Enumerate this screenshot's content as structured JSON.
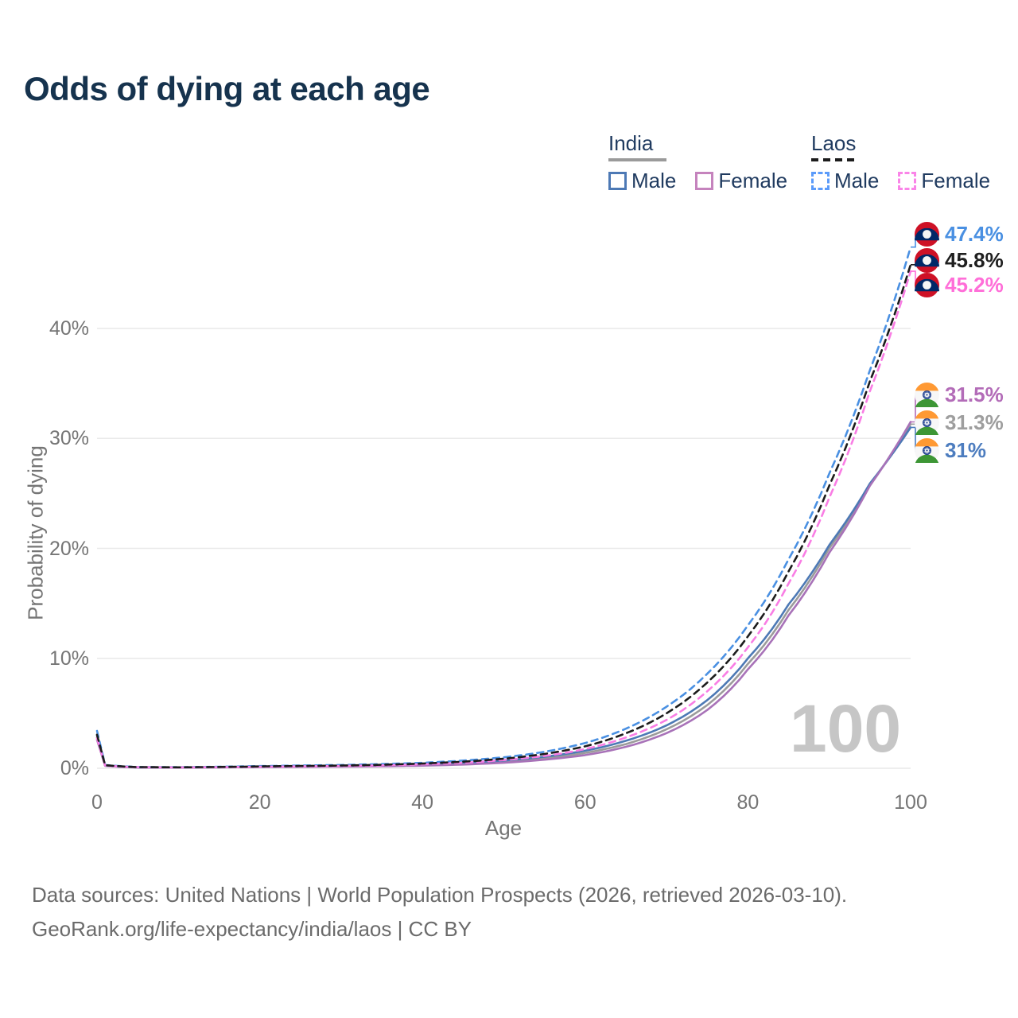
{
  "title": "Odds of dying at each age",
  "legend": {
    "groups": [
      {
        "name": "India",
        "underline_style": "solid",
        "underline_color": "#9a9a9a",
        "items": [
          {
            "label": "Male",
            "swatch_color": "#4d79b5",
            "swatch_style": "solid"
          },
          {
            "label": "Female",
            "swatch_color": "#c583bd",
            "swatch_style": "solid"
          }
        ]
      },
      {
        "name": "Laos",
        "underline_style": "dashed",
        "underline_color": "#1c1c1c",
        "items": [
          {
            "label": "Male",
            "swatch_color": "#5b9bfa",
            "swatch_style": "dashed"
          },
          {
            "label": "Female",
            "swatch_color": "#fa85e8",
            "swatch_style": "dashed"
          }
        ]
      }
    ]
  },
  "axes": {
    "x_title": "Age",
    "y_title": "Probability of dying",
    "x_ticks": [
      "0",
      "20",
      "40",
      "60",
      "80",
      "100"
    ],
    "y_ticks": [
      "0%",
      "10%",
      "20%",
      "30%",
      "40%"
    ]
  },
  "watermark": "100",
  "footer": {
    "line1": "Data sources: United Nations | World Population Prospects (2026, retrieved 2026-03-10).",
    "line2": "GeoRank.org/life-expectancy/india/laos | CC BY"
  },
  "chart_data": {
    "type": "line",
    "title": "Odds of dying at each age",
    "xlabel": "Age",
    "ylabel": "Probability of dying",
    "x_range": [
      0,
      100
    ],
    "y_range_pct": [
      0,
      40
    ],
    "grid": "horizontal-only",
    "x": [
      0,
      1,
      5,
      10,
      15,
      20,
      25,
      30,
      35,
      40,
      45,
      50,
      55,
      60,
      65,
      70,
      75,
      80,
      85,
      90,
      95,
      100
    ],
    "series": [
      {
        "name": "India Both sexes",
        "country": "India",
        "sex": "Both",
        "style": "solid",
        "color": "#9b9b9b",
        "values_pct": [
          2.8,
          0.24,
          0.075,
          0.065,
          0.09,
          0.125,
          0.15,
          0.175,
          0.215,
          0.285,
          0.4,
          0.6,
          0.9,
          1.4,
          2.2,
          3.55,
          5.75,
          9.5,
          14.4,
          20.0,
          25.8,
          31.3
        ]
      },
      {
        "name": "India Male",
        "country": "India",
        "sex": "Male",
        "style": "solid",
        "color": "#4d79b5",
        "values_pct": [
          3.0,
          0.25,
          0.08,
          0.07,
          0.1,
          0.14,
          0.17,
          0.2,
          0.25,
          0.33,
          0.47,
          0.7,
          1.05,
          1.6,
          2.5,
          3.9,
          6.2,
          10.0,
          14.9,
          20.3,
          25.9,
          31.0
        ]
      },
      {
        "name": "India Female",
        "country": "India",
        "sex": "Female",
        "style": "solid",
        "color": "#a872b8",
        "values_pct": [
          2.6,
          0.22,
          0.07,
          0.06,
          0.08,
          0.11,
          0.13,
          0.15,
          0.18,
          0.24,
          0.34,
          0.5,
          0.78,
          1.2,
          1.95,
          3.2,
          5.3,
          9.0,
          13.9,
          19.6,
          25.7,
          31.5
        ]
      },
      {
        "name": "Laos Male",
        "country": "Laos",
        "sex": "Male",
        "style": "dashed",
        "color": "#4a90e2",
        "values_pct": [
          3.4,
          0.3,
          0.12,
          0.1,
          0.14,
          0.2,
          0.25,
          0.3,
          0.38,
          0.5,
          0.7,
          1.0,
          1.5,
          2.3,
          3.6,
          5.6,
          8.6,
          13.0,
          19.0,
          26.8,
          36.2,
          47.4
        ]
      },
      {
        "name": "Laos Female",
        "country": "Laos",
        "sex": "Female",
        "style": "dashed",
        "color": "#f97de4",
        "values_pct": [
          2.75,
          0.25,
          0.1,
          0.08,
          0.1,
          0.14,
          0.17,
          0.21,
          0.27,
          0.36,
          0.5,
          0.75,
          1.12,
          1.75,
          2.8,
          4.4,
          7.0,
          11.0,
          16.8,
          24.6,
          34.3,
          45.2
        ]
      },
      {
        "name": "Laos Both sexes",
        "country": "Laos",
        "sex": "Both",
        "style": "dashed",
        "color": "#1c1c1c",
        "values_pct": [
          3.05,
          0.28,
          0.11,
          0.09,
          0.12,
          0.17,
          0.21,
          0.25,
          0.32,
          0.43,
          0.6,
          0.87,
          1.3,
          2.0,
          3.18,
          5.0,
          7.8,
          12.0,
          17.9,
          25.7,
          35.2,
          45.8
        ]
      }
    ],
    "end_labels": [
      {
        "label": "47.4%",
        "value_pct": 47.4,
        "color": "#4a90e2",
        "flag": "laos",
        "series": "Laos Male"
      },
      {
        "label": "45.8%",
        "value_pct": 45.8,
        "color": "#1f1f1f",
        "flag": "laos",
        "series": "Laos Both sexes"
      },
      {
        "label": "45.2%",
        "value_pct": 45.2,
        "color": "#ff6ed8",
        "flag": "laos",
        "series": "Laos Female"
      },
      {
        "label": "31.5%",
        "value_pct": 31.5,
        "color": "#b36cb8",
        "flag": "india",
        "series": "India Female"
      },
      {
        "label": "31.3%",
        "value_pct": 31.3,
        "color": "#9e9e9e",
        "flag": "india",
        "series": "India Both sexes"
      },
      {
        "label": "31%",
        "value_pct": 31.0,
        "color": "#4d7dbf",
        "flag": "india",
        "series": "India Male"
      }
    ]
  },
  "flag_colors": {
    "laos": {
      "red": "#ce1126",
      "blue": "#002868",
      "circle": "#f5f5f5"
    },
    "india": {
      "saffron": "#ff9933",
      "white": "#f7f7f7",
      "green": "#3d9635",
      "chakra": "#1a3c8f"
    }
  }
}
